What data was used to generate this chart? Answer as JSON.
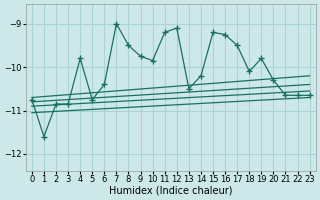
{
  "xlabel": "Humidex (Indice chaleur)",
  "bg_color": "#cce8e8",
  "grid_color": "#aad4d4",
  "line_color": "#1a7060",
  "xlim": [
    -0.5,
    23.5
  ],
  "ylim": [
    -12.4,
    -8.55
  ],
  "yticks": [
    -12,
    -11,
    -10,
    -9
  ],
  "xticks": [
    0,
    1,
    2,
    3,
    4,
    5,
    6,
    7,
    8,
    9,
    10,
    11,
    12,
    13,
    14,
    15,
    16,
    17,
    18,
    19,
    20,
    21,
    22,
    23
  ],
  "main_x": [
    0,
    1,
    2,
    3,
    4,
    5,
    6,
    7,
    8,
    9,
    10,
    11,
    12,
    13,
    14,
    15,
    16,
    17,
    18,
    19,
    20,
    21,
    22,
    23
  ],
  "main_y": [
    -10.75,
    -11.6,
    -10.85,
    -10.85,
    -9.8,
    -10.75,
    -10.4,
    -9.0,
    -9.5,
    -9.75,
    -9.85,
    -9.2,
    -9.1,
    -10.5,
    -10.2,
    -9.2,
    -9.25,
    -9.5,
    -10.1,
    -9.8,
    -10.3,
    -10.65,
    -10.65,
    -10.65
  ],
  "reg_lines": [
    {
      "x0": 0,
      "y0": -10.7,
      "x1": 23,
      "y1": -10.2
    },
    {
      "x0": 0,
      "y0": -10.8,
      "x1": 23,
      "y1": -10.4
    },
    {
      "x0": 0,
      "y0": -10.9,
      "x1": 23,
      "y1": -10.55
    },
    {
      "x0": 0,
      "y0": -11.05,
      "x1": 23,
      "y1": -10.7
    }
  ]
}
